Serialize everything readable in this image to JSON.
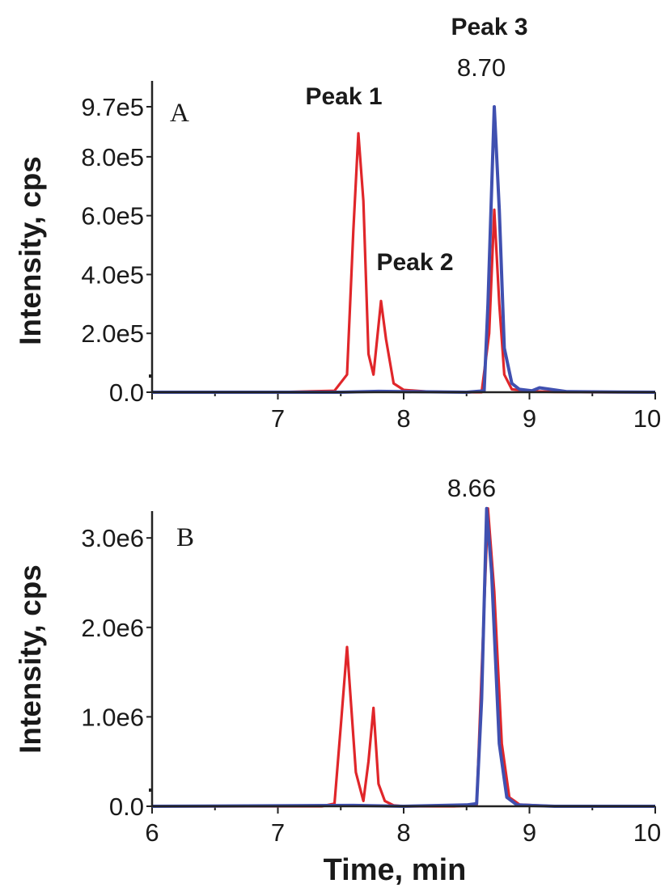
{
  "chart_data": [
    {
      "type": "line",
      "panel_label": "A",
      "ylabel": "Intensity, cps",
      "xlabel": "",
      "xlim": [
        6.0,
        10.0
      ],
      "ylim": [
        0,
        970000
      ],
      "x_ticks": [
        {
          "value": 7,
          "label": "7"
        },
        {
          "value": 8,
          "label": "8"
        },
        {
          "value": 9,
          "label": "9"
        },
        {
          "value": 10,
          "label": "10"
        }
      ],
      "y_ticks": [
        {
          "value": 0,
          "label": "0.0"
        },
        {
          "value": 200000,
          "label": "2.0e5"
        },
        {
          "value": 400000,
          "label": "4.0e5"
        },
        {
          "value": 600000,
          "label": "6.0e5"
        },
        {
          "value": 800000,
          "label": "8.0e5"
        },
        {
          "value": 970000,
          "label": "9.7e5"
        }
      ],
      "series": [
        {
          "color": "#e0262a",
          "x": [
            6.0,
            7.0,
            7.45,
            7.55,
            7.6,
            7.64,
            7.68,
            7.72,
            7.76,
            7.82,
            7.86,
            7.92,
            8.0,
            8.2,
            8.5,
            8.62,
            8.68,
            8.72,
            8.76,
            8.8,
            8.86,
            9.0,
            9.2,
            9.5,
            10.0
          ],
          "y": [
            0,
            0,
            5000,
            60000,
            550000,
            880000,
            650000,
            130000,
            60000,
            310000,
            180000,
            30000,
            8000,
            2000,
            0,
            0,
            200000,
            620000,
            300000,
            60000,
            10000,
            3000,
            1000,
            0,
            0
          ]
        },
        {
          "color": "#4050b0",
          "x": [
            6.0,
            7.5,
            7.8,
            8.5,
            8.64,
            8.67,
            8.72,
            8.76,
            8.8,
            8.86,
            8.92,
            9.02,
            9.08,
            9.3,
            10.0
          ],
          "y": [
            0,
            0,
            3000,
            0,
            5000,
            300000,
            970000,
            620000,
            150000,
            30000,
            10000,
            5000,
            15000,
            2000,
            0
          ]
        }
      ],
      "annotations": [
        {
          "text": "Peak 1",
          "x": 7.6
        },
        {
          "text": "Peak 2",
          "x": 7.85
        },
        {
          "text": "Peak 3",
          "x": 8.7
        },
        {
          "text": "8.70",
          "x": 8.7
        }
      ]
    },
    {
      "type": "line",
      "panel_label": "B",
      "ylabel": "Intensity, cps",
      "xlabel": "Time, min",
      "xlim": [
        6.0,
        10.0
      ],
      "ylim": [
        0,
        3300000
      ],
      "x_ticks": [
        {
          "value": 6,
          "label": "6"
        },
        {
          "value": 7,
          "label": "7"
        },
        {
          "value": 8,
          "label": "8"
        },
        {
          "value": 9,
          "label": "9"
        },
        {
          "value": 10,
          "label": "10"
        }
      ],
      "y_ticks": [
        {
          "value": 0,
          "label": "0.0"
        },
        {
          "value": 1000000,
          "label": "1.0e6"
        },
        {
          "value": 2000000,
          "label": "2.0e6"
        },
        {
          "value": 3000000,
          "label": "3.0e6"
        }
      ],
      "series": [
        {
          "color": "#e0262a",
          "x": [
            6.0,
            7.35,
            7.45,
            7.5,
            7.55,
            7.62,
            7.68,
            7.72,
            7.76,
            7.8,
            7.85,
            7.92,
            8.0,
            8.4,
            8.58,
            8.62,
            8.67,
            8.72,
            8.78,
            8.84,
            8.92,
            9.2,
            10.0
          ],
          "y": [
            0,
            0,
            30000,
            900000,
            1780000,
            380000,
            60000,
            500000,
            1100000,
            250000,
            60000,
            10000,
            0,
            0,
            10000,
            1500000,
            3330000,
            2400000,
            700000,
            100000,
            20000,
            0,
            0
          ]
        },
        {
          "color": "#4050b0",
          "x": [
            6.0,
            7.6,
            8.0,
            8.5,
            8.58,
            8.62,
            8.66,
            8.7,
            8.76,
            8.82,
            8.9,
            9.2,
            10.0
          ],
          "y": [
            0,
            10000,
            0,
            15000,
            30000,
            1200000,
            3330000,
            2600000,
            700000,
            100000,
            15000,
            0,
            0
          ]
        }
      ],
      "annotations": [
        {
          "text": "8.66",
          "x": 8.66
        }
      ]
    }
  ]
}
